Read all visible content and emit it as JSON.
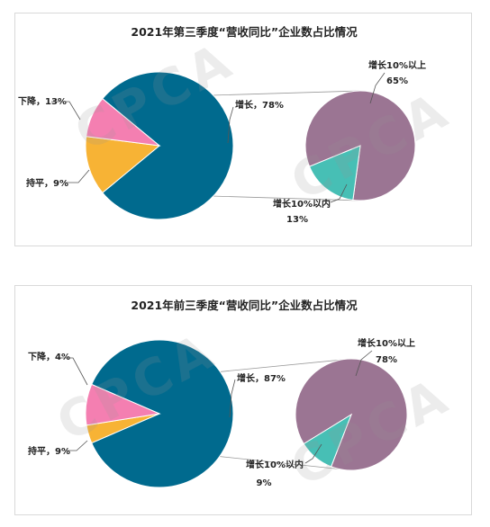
{
  "colors": {
    "growth": "#006a8e",
    "decline": "#f7b335",
    "flat": "#f47fb1",
    "growth_above10": "#9b7593",
    "growth_within10": "#47bfb5",
    "connector": "#9a9a9a",
    "watermark": "#969696"
  },
  "watermark_text": "CPCA",
  "chart_data": [
    {
      "type": "pie",
      "title": "2021年第三季度“营收同比”企业数占比情况",
      "main": {
        "slices": [
          {
            "name": "增长",
            "value": 78,
            "label": "增长，78%"
          },
          {
            "name": "下降",
            "value": 13,
            "label": "下降，13%"
          },
          {
            "name": "持平",
            "value": 9,
            "label": "持平，9%"
          }
        ]
      },
      "breakdown_of": "增长",
      "sub": {
        "slices": [
          {
            "name": "增长10%以上",
            "value": 65,
            "label": "增长10%以上",
            "value_label": "65%"
          },
          {
            "name": "增长10%以内",
            "value": 13,
            "label": "增长10%以内",
            "value_label": "13%"
          }
        ]
      }
    },
    {
      "type": "pie",
      "title": "2021年前三季度“营收同比”企业数占比情况",
      "main": {
        "slices": [
          {
            "name": "增长",
            "value": 87,
            "label": "增长，87%"
          },
          {
            "name": "下降",
            "value": 4,
            "label": "下降，4%"
          },
          {
            "name": "持平",
            "value": 9,
            "label": "持平，9%"
          }
        ]
      },
      "breakdown_of": "增长",
      "sub": {
        "slices": [
          {
            "name": "增长10%以上",
            "value": 78,
            "label": "增长10%以上",
            "value_label": "78%"
          },
          {
            "name": "增长10%以内",
            "value": 9,
            "label": "增长10%以内",
            "value_label": "9%"
          }
        ]
      }
    }
  ]
}
